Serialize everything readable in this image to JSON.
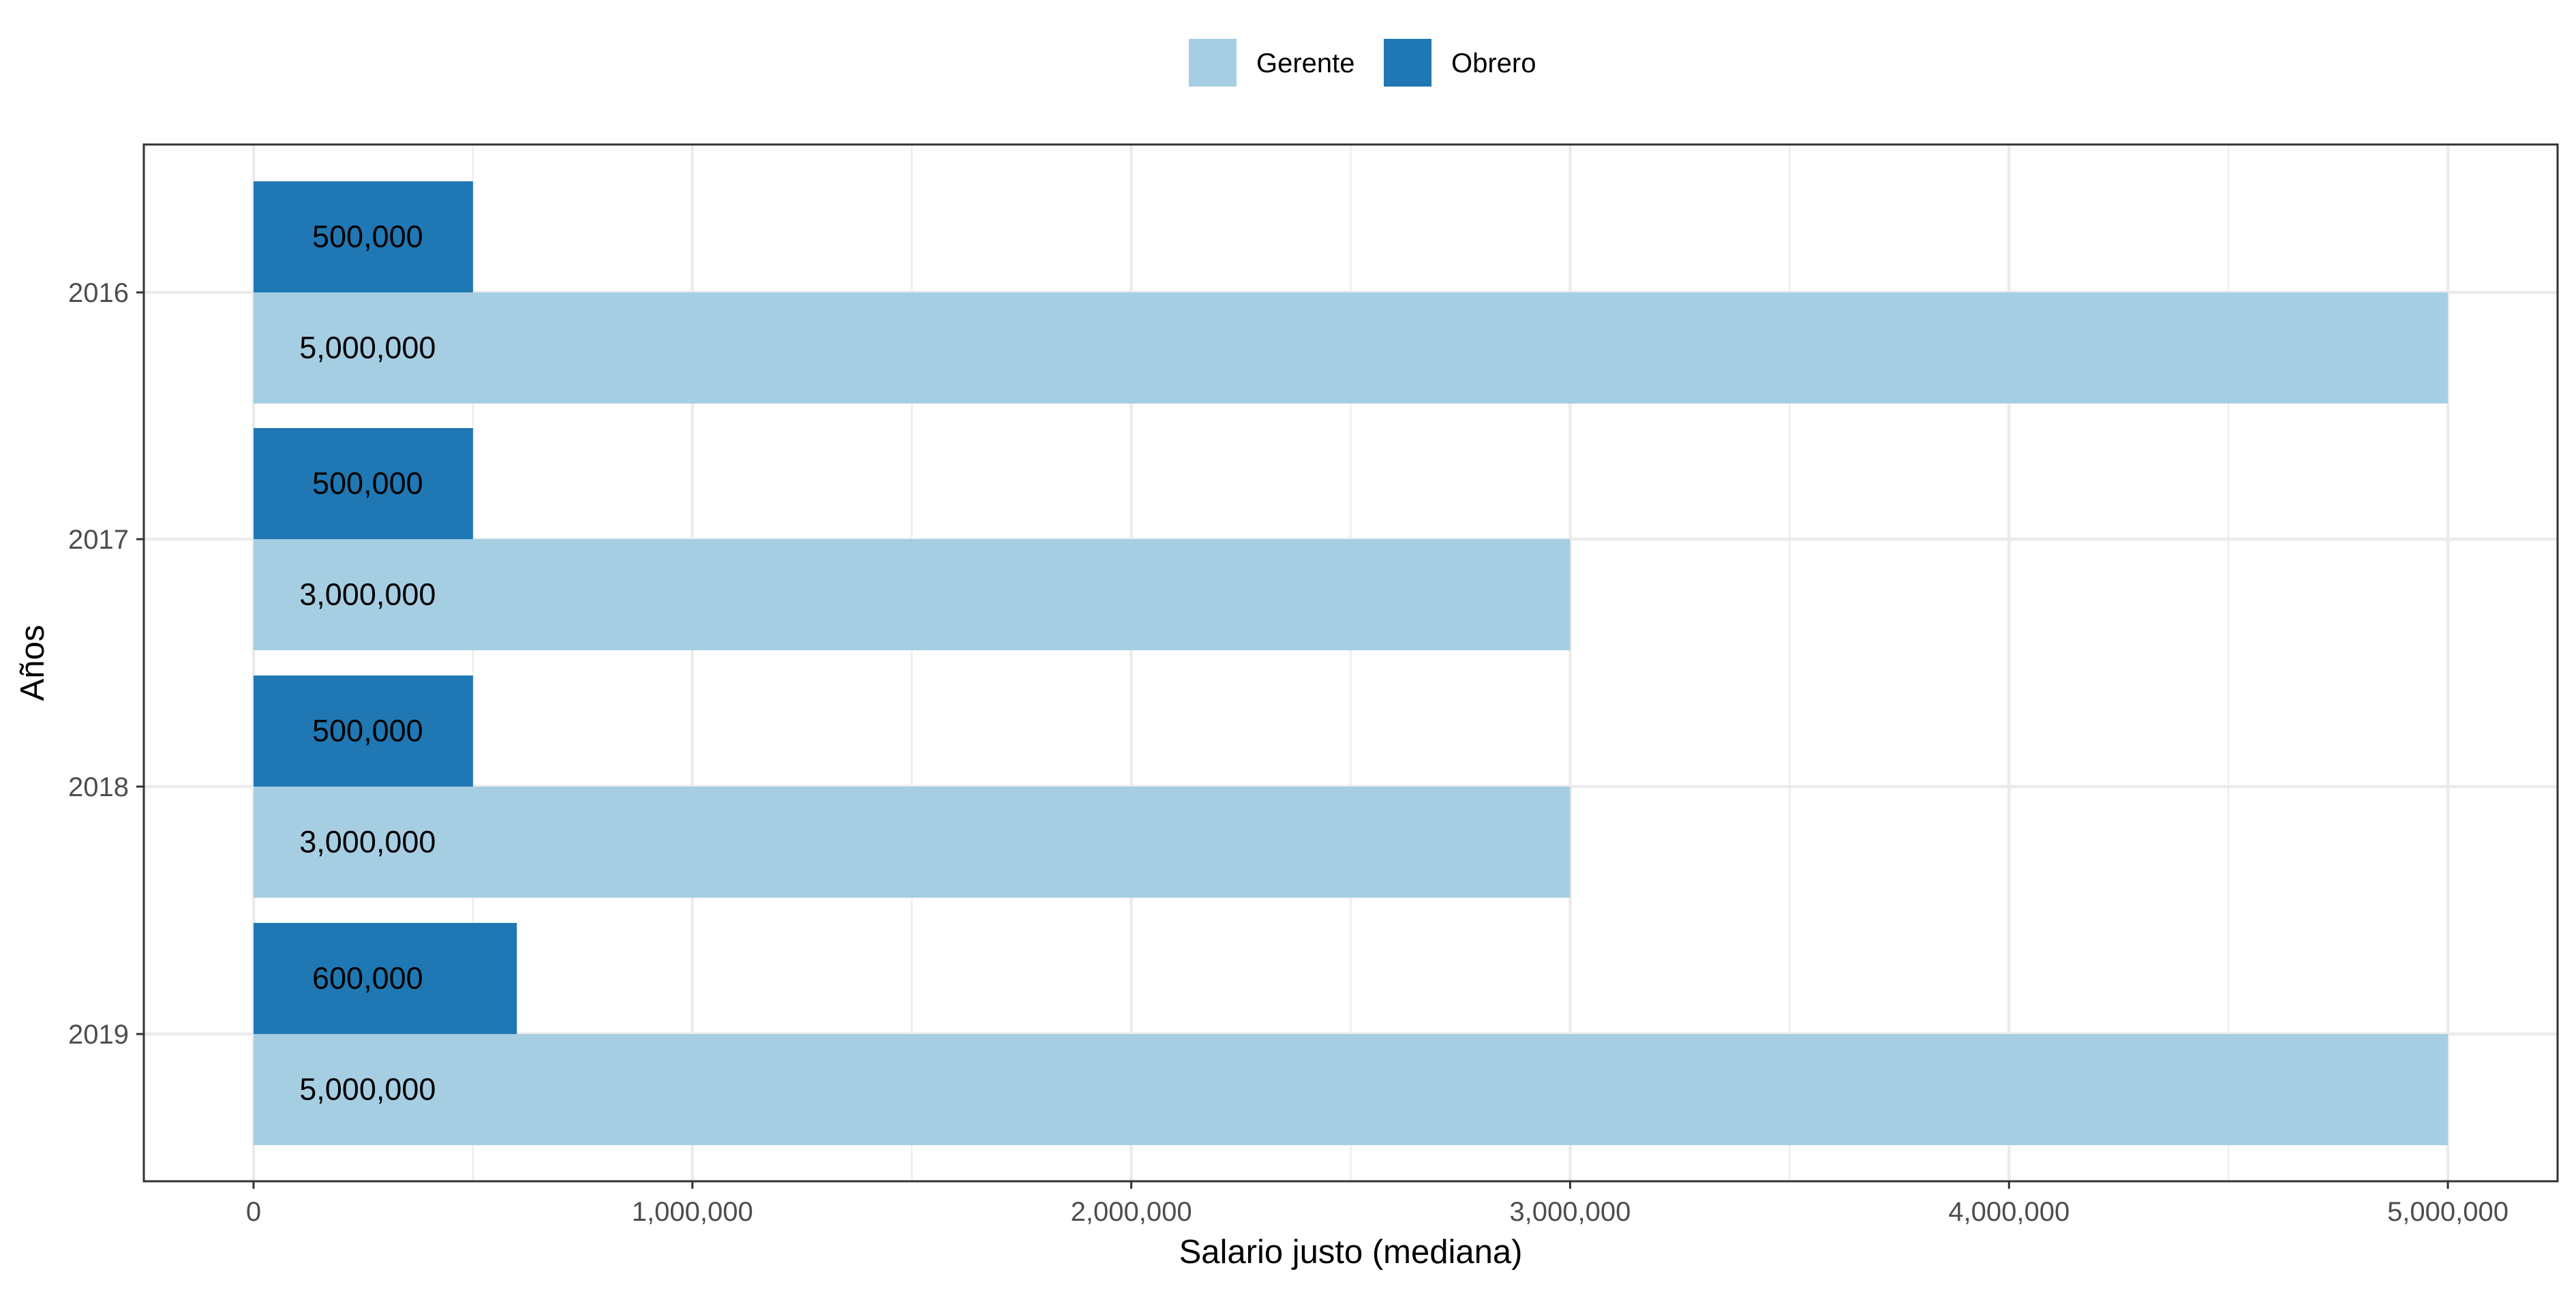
{
  "chart_data": {
    "type": "bar",
    "orientation": "horizontal",
    "categories": [
      "2016",
      "2017",
      "2018",
      "2019"
    ],
    "series": [
      {
        "name": "Gerente",
        "color": "#A6CEE3",
        "values": [
          5000000,
          3000000,
          3000000,
          5000000
        ]
      },
      {
        "name": "Obrero",
        "color": "#1F78B4",
        "values": [
          500000,
          500000,
          500000,
          600000
        ]
      }
    ],
    "data_labels": {
      "Gerente": [
        "5,000,000",
        "3,000,000",
        "3,000,000",
        "5,000,000"
      ],
      "Obrero": [
        "500,000",
        "500,000",
        "500,000",
        "600,000"
      ]
    },
    "xlabel": "Salario justo (mediana)",
    "ylabel": "Años",
    "xlim": [
      -250000,
      5250000
    ],
    "x_ticks": [
      0,
      1000000,
      2000000,
      3000000,
      4000000,
      5000000
    ],
    "x_tick_labels": [
      "0",
      "1,000,000",
      "2,000,000",
      "3,000,000",
      "4,000,000",
      "5,000,000"
    ],
    "grid": true,
    "legend_position": "top"
  }
}
